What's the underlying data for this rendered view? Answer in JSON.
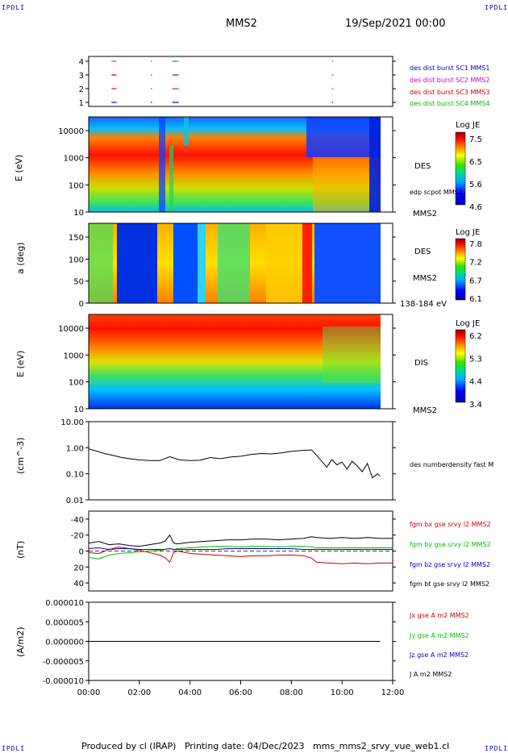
{
  "header": {
    "corner_label": "IPDLI",
    "spacecraft": "MMS2",
    "date_time": "19/Sep/2021 00:00"
  },
  "footer": {
    "text": "Produced by cl (IRAP)   Printing date: 04/Dec/2023   mms_mms2_srvy_vue_web1.cl"
  },
  "x_axis": {
    "ticks": [
      "00:00",
      "02:00",
      "04:00",
      "06:00",
      "08:00",
      "10:00",
      "12:00"
    ],
    "range_hours": [
      0,
      12
    ]
  },
  "colors": {
    "mms1": "#0000cc",
    "mms2": "#cc00cc",
    "mms3": "#cc0000",
    "mms4": "#00bb00",
    "bx": "#cc0000",
    "by": "#00bb00",
    "bz": "#0000cc",
    "bt": "#000000"
  },
  "chart_data": [
    {
      "type": "scatter",
      "panel": "burst-availability",
      "yticks": [
        "1",
        "2",
        "3",
        "4"
      ],
      "series": [
        {
          "name": "des dist burst SC1 MMS1",
          "y": 1,
          "segments": [
            [
              0.9,
              1.1
            ],
            [
              2.45,
              2.5
            ],
            [
              3.3,
              3.55
            ],
            [
              9.6,
              9.65
            ]
          ]
        },
        {
          "name": "des dist burst SC2 MMS2",
          "y": 2,
          "segments": [
            [
              0.9,
              1.1
            ],
            [
              2.45,
              2.5
            ],
            [
              3.3,
              3.55
            ],
            [
              9.6,
              9.65
            ]
          ]
        },
        {
          "name": "des dist burst SC3 MMS3",
          "y": 3,
          "segments": [
            [
              0.9,
              1.1
            ],
            [
              2.45,
              2.5
            ],
            [
              3.3,
              3.55
            ],
            [
              9.6,
              9.65
            ]
          ]
        },
        {
          "name": "des dist burst SC4 MMS4",
          "y": 4,
          "segments": [
            [
              0.9,
              1.1
            ],
            [
              2.45,
              2.5
            ],
            [
              3.3,
              3.55
            ],
            [
              9.6,
              9.65
            ]
          ]
        }
      ]
    },
    {
      "type": "heatmap",
      "panel": "des-energy",
      "ylabel": "E (eV)",
      "yticks": [
        "10",
        "100",
        "1000",
        "10000"
      ],
      "right_labels": [
        "DES",
        "edp scpot MMS2",
        "MMS2"
      ],
      "colorbar": {
        "title": "Log JE",
        "ticks": [
          "7.5",
          "6.5",
          "5.6",
          "4.6"
        ],
        "range": [
          4.6,
          7.5
        ]
      }
    },
    {
      "type": "heatmap",
      "panel": "des-pitch-angle",
      "ylabel": "a (deg)",
      "yticks": [
        "0",
        "50",
        "100",
        "150"
      ],
      "right_labels": [
        "DES",
        "MMS2",
        "138-184 eV"
      ],
      "colorbar": {
        "title": "Log JE",
        "ticks": [
          "7.8",
          "7.2",
          "6.7",
          "6.1"
        ],
        "range": [
          6.1,
          7.8
        ]
      }
    },
    {
      "type": "heatmap",
      "panel": "dis-energy",
      "ylabel": "E (eV)",
      "yticks": [
        "10",
        "100",
        "1000",
        "10000"
      ],
      "right_labels": [
        "DIS",
        "MMS2"
      ],
      "colorbar": {
        "title": "Log JE",
        "ticks": [
          "6.2",
          "5.3",
          "4.4",
          "3.4"
        ],
        "range": [
          3.4,
          6.2
        ]
      }
    },
    {
      "type": "line",
      "panel": "density",
      "ylabel": "(cm^-3)",
      "yticks": [
        "0.01",
        "0.10",
        "1.00",
        "10.00"
      ],
      "log": true,
      "ylim": [
        0.01,
        10
      ],
      "series": [
        {
          "name": "des numberdensity fast M",
          "x": [
            0,
            0.3,
            0.6,
            1.0,
            1.3,
            1.6,
            2.0,
            2.4,
            2.8,
            3.2,
            3.6,
            4.0,
            4.4,
            4.8,
            5.2,
            5.6,
            6.0,
            6.4,
            6.8,
            7.2,
            7.6,
            8.0,
            8.4,
            8.8,
            9.0,
            9.2,
            9.4,
            9.6,
            9.8,
            10.0,
            10.2,
            10.4,
            10.6,
            10.8,
            11.0,
            11.2,
            11.4,
            11.5
          ],
          "values": [
            0.9,
            0.75,
            0.6,
            0.5,
            0.42,
            0.38,
            0.34,
            0.32,
            0.32,
            0.45,
            0.34,
            0.32,
            0.33,
            0.42,
            0.38,
            0.44,
            0.47,
            0.55,
            0.6,
            0.58,
            0.63,
            0.72,
            0.78,
            0.82,
            0.5,
            0.3,
            0.18,
            0.35,
            0.22,
            0.28,
            0.15,
            0.3,
            0.2,
            0.12,
            0.25,
            0.07,
            0.1,
            0.08
          ]
        }
      ]
    },
    {
      "type": "line",
      "panel": "magnetic-field",
      "ylabel": "(nT)",
      "yticks": [
        "-40",
        "-20",
        "0",
        "20",
        "40"
      ],
      "ylim": [
        -50,
        50
      ],
      "x": [
        0,
        0.4,
        0.8,
        1.2,
        1.6,
        2.0,
        2.4,
        2.8,
        3.0,
        3.2,
        3.35,
        3.5,
        4.0,
        4.5,
        5.0,
        5.5,
        6.0,
        6.5,
        7.0,
        7.5,
        8.0,
        8.5,
        8.8,
        9.0,
        9.5,
        10.0,
        10.5,
        11.0,
        11.5,
        12.0
      ],
      "series": [
        {
          "name": "fgm bx gse srvy l2 MMS2",
          "values": [
            -2,
            -3,
            2,
            5,
            3,
            1,
            -2,
            -5,
            -8,
            -14,
            -2,
            0,
            -3,
            -4,
            -5,
            -6,
            -7,
            -6,
            -6,
            -5,
            -5,
            -6,
            -9,
            -14,
            -15,
            -16,
            -15,
            -16,
            -15,
            -15
          ]
        },
        {
          "name": "fgm by gse srvy l2 MMS2",
          "values": [
            -8,
            -10,
            -5,
            -3,
            -2,
            -1,
            0,
            1,
            2,
            3,
            2,
            3,
            4,
            5,
            6,
            6,
            5,
            6,
            6,
            5,
            6,
            6,
            5,
            4,
            4,
            4,
            4,
            4,
            4,
            4
          ]
        },
        {
          "name": "fgm bz gse srvy l2 MMS2",
          "values": [
            3,
            4,
            2,
            3,
            3,
            2,
            2,
            2,
            2,
            3,
            2,
            2,
            2,
            2,
            2,
            3,
            3,
            3,
            3,
            3,
            3,
            2,
            2,
            2,
            2,
            2,
            2,
            2,
            2,
            2
          ]
        },
        {
          "name": "fgm bt gse srvy l2 MMS2",
          "values": [
            10,
            12,
            8,
            9,
            7,
            6,
            8,
            10,
            12,
            20,
            10,
            9,
            11,
            12,
            13,
            14,
            14,
            15,
            15,
            14,
            15,
            16,
            18,
            17,
            16,
            17,
            16,
            17,
            16,
            16
          ]
        }
      ]
    },
    {
      "type": "line",
      "panel": "current-density",
      "ylabel": "(A/m2)",
      "yticks": [
        "-0.000010",
        "-0.000005",
        "0.000000",
        "0.000005",
        "0.000010"
      ],
      "ylim": [
        -1e-05,
        1e-05
      ],
      "x": [
        0,
        2,
        4,
        6,
        8,
        10,
        11.5
      ],
      "series": [
        {
          "name": "Jx gse A m2 MMS2",
          "values": [
            0,
            0,
            0,
            0,
            0,
            0,
            0
          ]
        },
        {
          "name": "Jy gse A m2 MMS2",
          "values": [
            0,
            0,
            0,
            0,
            0,
            0,
            0
          ]
        },
        {
          "name": "Jz gse A m2 MMS2",
          "values": [
            0,
            0,
            0,
            0,
            0,
            0,
            0
          ]
        },
        {
          "name": "J A m2 MMS2",
          "values": [
            0,
            0,
            0,
            0,
            0,
            0,
            0
          ]
        }
      ]
    }
  ]
}
